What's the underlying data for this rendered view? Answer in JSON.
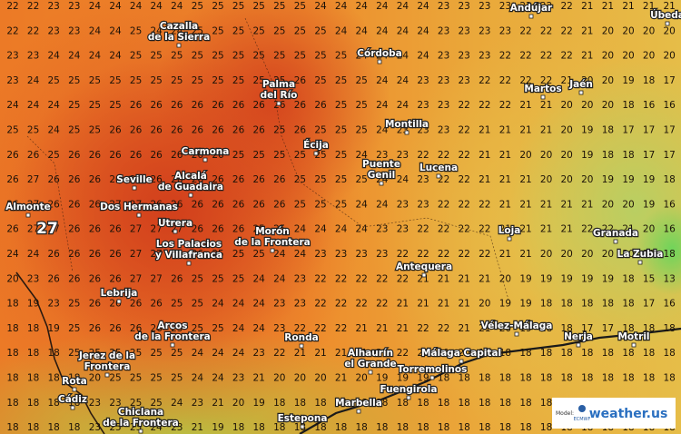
{
  "map": {
    "grid": [
      [
        22,
        22,
        23,
        23,
        24,
        24,
        24,
        24,
        24,
        25,
        25,
        25,
        25,
        25,
        25,
        24,
        24,
        24,
        24,
        24,
        24,
        23,
        23,
        23,
        23,
        22,
        22,
        22,
        21,
        21,
        21,
        21,
        21
      ],
      [
        22,
        22,
        23,
        23,
        24,
        24,
        25,
        24,
        24,
        25,
        25,
        25,
        25,
        25,
        25,
        25,
        24,
        24,
        24,
        24,
        24,
        23,
        23,
        23,
        23,
        22,
        22,
        22,
        21,
        20,
        20,
        20,
        20
      ],
      [
        23,
        23,
        24,
        24,
        24,
        24,
        25,
        25,
        25,
        25,
        25,
        25,
        25,
        25,
        25,
        25,
        25,
        24,
        24,
        24,
        24,
        23,
        23,
        23,
        22,
        22,
        22,
        22,
        21,
        20,
        20,
        20,
        20
      ],
      [
        23,
        24,
        25,
        25,
        25,
        25,
        25,
        25,
        25,
        25,
        25,
        25,
        25,
        25,
        26,
        25,
        25,
        25,
        24,
        24,
        23,
        23,
        23,
        22,
        22,
        22,
        22,
        21,
        20,
        20,
        19,
        18,
        17
      ],
      [
        24,
        24,
        24,
        25,
        25,
        25,
        26,
        26,
        26,
        26,
        26,
        26,
        26,
        26,
        26,
        26,
        25,
        25,
        24,
        24,
        23,
        23,
        22,
        22,
        22,
        21,
        21,
        20,
        20,
        20,
        18,
        16,
        16
      ],
      [
        25,
        25,
        24,
        25,
        25,
        26,
        26,
        26,
        26,
        26,
        26,
        26,
        26,
        25,
        26,
        25,
        25,
        25,
        24,
        23,
        23,
        23,
        22,
        21,
        21,
        21,
        21,
        20,
        19,
        18,
        17,
        17,
        17
      ],
      [
        26,
        26,
        25,
        26,
        26,
        26,
        26,
        26,
        26,
        26,
        26,
        25,
        25,
        25,
        25,
        25,
        25,
        24,
        23,
        23,
        22,
        22,
        22,
        21,
        21,
        20,
        20,
        20,
        19,
        18,
        18,
        17,
        17
      ],
      [
        26,
        27,
        26,
        26,
        26,
        26,
        27,
        26,
        26,
        26,
        26,
        26,
        26,
        26,
        25,
        25,
        25,
        25,
        24,
        24,
        23,
        22,
        22,
        21,
        21,
        21,
        20,
        20,
        20,
        19,
        19,
        19,
        18
      ],
      [
        26,
        27,
        26,
        26,
        26,
        27,
        27,
        26,
        26,
        26,
        26,
        26,
        26,
        26,
        25,
        25,
        25,
        24,
        24,
        23,
        23,
        22,
        22,
        22,
        21,
        21,
        21,
        21,
        21,
        20,
        20,
        19,
        16
      ],
      [
        26,
        27,
        27,
        26,
        26,
        26,
        27,
        27,
        27,
        26,
        26,
        26,
        25,
        25,
        24,
        24,
        24,
        24,
        23,
        23,
        22,
        22,
        22,
        22,
        21,
        21,
        21,
        21,
        22,
        22,
        21,
        20,
        16
      ],
      [
        24,
        24,
        26,
        26,
        26,
        26,
        27,
        27,
        26,
        26,
        25,
        25,
        25,
        24,
        24,
        23,
        23,
        23,
        23,
        22,
        22,
        22,
        22,
        22,
        21,
        21,
        20,
        20,
        20,
        20,
        20,
        19,
        18
      ],
      [
        20,
        23,
        26,
        26,
        26,
        26,
        27,
        27,
        26,
        25,
        25,
        25,
        24,
        24,
        23,
        22,
        22,
        22,
        22,
        22,
        21,
        21,
        21,
        21,
        20,
        19,
        19,
        19,
        19,
        19,
        18,
        15,
        13
      ],
      [
        18,
        19,
        23,
        25,
        26,
        26,
        26,
        26,
        25,
        25,
        24,
        24,
        24,
        23,
        23,
        22,
        22,
        22,
        22,
        21,
        21,
        21,
        21,
        20,
        19,
        19,
        18,
        18,
        18,
        18,
        18,
        17,
        16
      ],
      [
        18,
        18,
        19,
        25,
        26,
        26,
        26,
        26,
        25,
        25,
        25,
        24,
        24,
        23,
        22,
        22,
        22,
        21,
        21,
        21,
        22,
        22,
        21,
        21,
        20,
        19,
        18,
        18,
        17,
        17,
        18,
        18,
        18
      ],
      [
        18,
        18,
        18,
        25,
        25,
        25,
        25,
        25,
        25,
        24,
        24,
        24,
        23,
        22,
        21,
        21,
        21,
        21,
        21,
        22,
        22,
        21,
        20,
        19,
        18,
        18,
        18,
        18,
        18,
        18,
        18,
        18,
        18
      ],
      [
        18,
        18,
        18,
        18,
        20,
        25,
        25,
        25,
        25,
        24,
        24,
        23,
        21,
        20,
        20,
        20,
        21,
        20,
        19,
        19,
        19,
        18,
        18,
        18,
        18,
        18,
        18,
        18,
        18,
        18,
        18,
        18,
        18
      ],
      [
        18,
        18,
        18,
        18,
        23,
        23,
        25,
        25,
        24,
        23,
        21,
        20,
        19,
        18,
        18,
        18,
        18,
        18,
        18,
        18,
        18,
        18,
        18,
        18,
        18,
        18,
        18,
        18,
        18,
        18,
        18,
        18,
        18
      ],
      [
        18,
        18,
        18,
        18,
        23,
        25,
        25,
        24,
        23,
        21,
        19,
        18,
        18,
        18,
        18,
        18,
        18,
        18,
        18,
        18,
        18,
        18,
        18,
        18,
        18,
        18,
        18,
        18,
        18,
        18,
        18,
        18,
        18
      ]
    ],
    "highlight": 27,
    "places": [
      [
        "Cazalla",
        "de la Sierra"
      ],
      [
        "Andújar"
      ],
      [
        "Úbeda"
      ],
      [
        "Córdoba"
      ],
      [
        "Palma",
        "del Río"
      ],
      [
        "Martos"
      ],
      [
        "Jaén"
      ],
      [
        "Montilla"
      ],
      [
        "Écija"
      ],
      [
        "Carmona"
      ],
      [
        "Puente",
        "Genil"
      ],
      [
        "Lucena"
      ],
      [
        "Seville"
      ],
      [
        "Alcalá",
        "de Guadaira"
      ],
      [
        "Almonte"
      ],
      [
        "Dos Hermanas"
      ],
      [
        "Utrera"
      ],
      [
        "Los Palacios",
        "y Villafranca"
      ],
      [
        "Morón",
        "de la Frontera"
      ],
      [
        "Loja"
      ],
      [
        "Granada"
      ],
      [
        "La Zubia"
      ],
      [
        "Lebrija"
      ],
      [
        "Antequera"
      ],
      [
        "Arcos",
        "de la Frontera"
      ],
      [
        "Ronda"
      ],
      [
        "Vélez-Málaga"
      ],
      [
        "Nerja"
      ],
      [
        "Motril"
      ],
      [
        "Jerez de la",
        "Frontera"
      ],
      [
        "Alhaurín",
        "el Grande"
      ],
      [
        "Málaga Capital"
      ],
      [
        "Torremolinos"
      ],
      [
        "Rota"
      ],
      [
        "Cádiz"
      ],
      [
        "Chiclana",
        "de la Frontera"
      ],
      [
        "Marbella"
      ],
      [
        "Fuengirola"
      ],
      [
        "Estepona"
      ]
    ],
    "legend": {
      "model": "Model:",
      "provider": "ECMWF",
      "brand": "weather.us"
    }
  }
}
